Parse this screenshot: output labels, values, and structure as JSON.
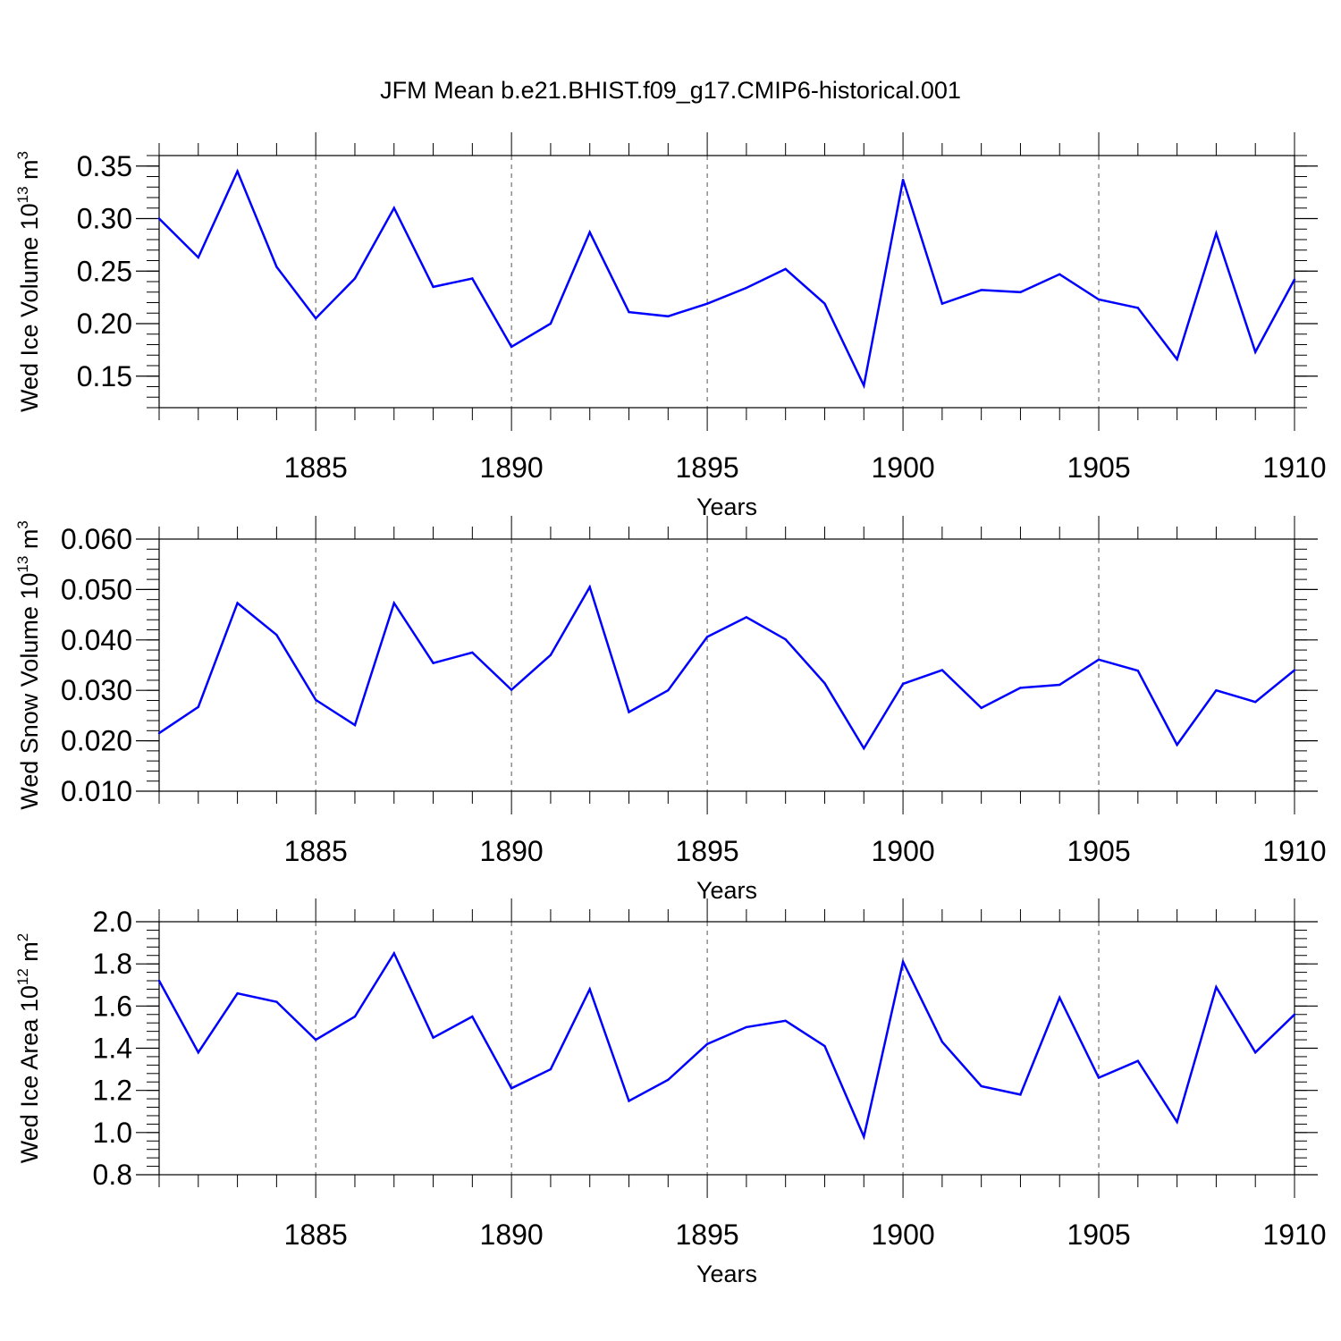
{
  "title": "JFM Mean b.e21.BHIST.f09_g17.CMIP6-historical.001",
  "chart_data": [
    {
      "type": "line",
      "xlabel": "Years",
      "ylabel": {
        "prefix": "Wed Ice Volume 10",
        "exp": "13",
        "unit": " m",
        "unit_exp": "3"
      },
      "xlim": [
        1881,
        1910
      ],
      "ylim": [
        0.12,
        0.36
      ],
      "x_ticks": [
        "1885",
        "1890",
        "1895",
        "1900",
        "1905",
        "1910"
      ],
      "y_ticks": [
        "0.15",
        "0.20",
        "0.25",
        "0.30",
        "0.35"
      ],
      "y_tick_values": [
        0.15,
        0.2,
        0.25,
        0.3,
        0.35
      ],
      "y_minor_step": 0.01,
      "grid": "dashed vertical at major x ticks",
      "color": "#0000ff",
      "x": [
        1881,
        1882,
        1883,
        1884,
        1885,
        1886,
        1887,
        1888,
        1889,
        1890,
        1891,
        1892,
        1893,
        1894,
        1895,
        1896,
        1897,
        1898,
        1899,
        1900,
        1901,
        1902,
        1903,
        1904,
        1905,
        1906,
        1907,
        1908,
        1909,
        1910
      ],
      "values": [
        0.3,
        0.263,
        0.345,
        0.254,
        0.205,
        0.243,
        0.31,
        0.235,
        0.243,
        0.178,
        0.2,
        0.287,
        0.211,
        0.207,
        0.219,
        0.234,
        0.252,
        0.219,
        0.141,
        0.337,
        0.219,
        0.232,
        0.23,
        0.247,
        0.223,
        0.215,
        0.166,
        0.286,
        0.173,
        0.242
      ]
    },
    {
      "type": "line",
      "xlabel": "Years",
      "ylabel": {
        "prefix": "Wed Snow Volume 10",
        "exp": "13",
        "unit": " m",
        "unit_exp": "3"
      },
      "xlim": [
        1881,
        1910
      ],
      "ylim": [
        0.01,
        0.06
      ],
      "x_ticks": [
        "1885",
        "1890",
        "1895",
        "1900",
        "1905",
        "1910"
      ],
      "y_ticks": [
        "0.010",
        "0.020",
        "0.030",
        "0.040",
        "0.050",
        "0.060"
      ],
      "y_tick_values": [
        0.01,
        0.02,
        0.03,
        0.04,
        0.05,
        0.06
      ],
      "y_minor_step": 0.002,
      "grid": "dashed vertical at major x ticks",
      "color": "#0000ff",
      "x": [
        1881,
        1882,
        1883,
        1884,
        1885,
        1886,
        1887,
        1888,
        1889,
        1890,
        1891,
        1892,
        1893,
        1894,
        1895,
        1896,
        1897,
        1898,
        1899,
        1900,
        1901,
        1902,
        1903,
        1904,
        1905,
        1906,
        1907,
        1908,
        1909,
        1910
      ],
      "values": [
        0.0215,
        0.0267,
        0.0473,
        0.041,
        0.0281,
        0.0231,
        0.0473,
        0.0354,
        0.0375,
        0.0301,
        0.037,
        0.0505,
        0.0257,
        0.03,
        0.0406,
        0.0445,
        0.0401,
        0.0314,
        0.0185,
        0.0313,
        0.034,
        0.0265,
        0.0305,
        0.0311,
        0.0361,
        0.0339,
        0.0192,
        0.03,
        0.0277,
        0.034
      ]
    },
    {
      "type": "line",
      "xlabel": "Years",
      "ylabel": {
        "prefix": "Wed Ice Area 10",
        "exp": "12",
        "unit": " m",
        "unit_exp": "2"
      },
      "xlim": [
        1881,
        1910
      ],
      "ylim": [
        0.8,
        2.0
      ],
      "x_ticks": [
        "1885",
        "1890",
        "1895",
        "1900",
        "1905",
        "1910"
      ],
      "y_ticks": [
        "0.8",
        "1.0",
        "1.2",
        "1.4",
        "1.6",
        "1.8",
        "2.0"
      ],
      "y_tick_values": [
        0.8,
        1.0,
        1.2,
        1.4,
        1.6,
        1.8,
        2.0
      ],
      "y_minor_step": 0.04,
      "grid": "dashed vertical at major x ticks",
      "color": "#0000ff",
      "x": [
        1881,
        1882,
        1883,
        1884,
        1885,
        1886,
        1887,
        1888,
        1889,
        1890,
        1891,
        1892,
        1893,
        1894,
        1895,
        1896,
        1897,
        1898,
        1899,
        1900,
        1901,
        1902,
        1903,
        1904,
        1905,
        1906,
        1907,
        1908,
        1909,
        1910
      ],
      "values": [
        1.72,
        1.38,
        1.66,
        1.62,
        1.44,
        1.55,
        1.85,
        1.45,
        1.55,
        1.21,
        1.3,
        1.68,
        1.15,
        1.25,
        1.42,
        1.5,
        1.53,
        1.41,
        0.98,
        1.81,
        1.43,
        1.22,
        1.18,
        1.64,
        1.26,
        1.34,
        1.05,
        1.69,
        1.38,
        1.56
      ]
    }
  ]
}
